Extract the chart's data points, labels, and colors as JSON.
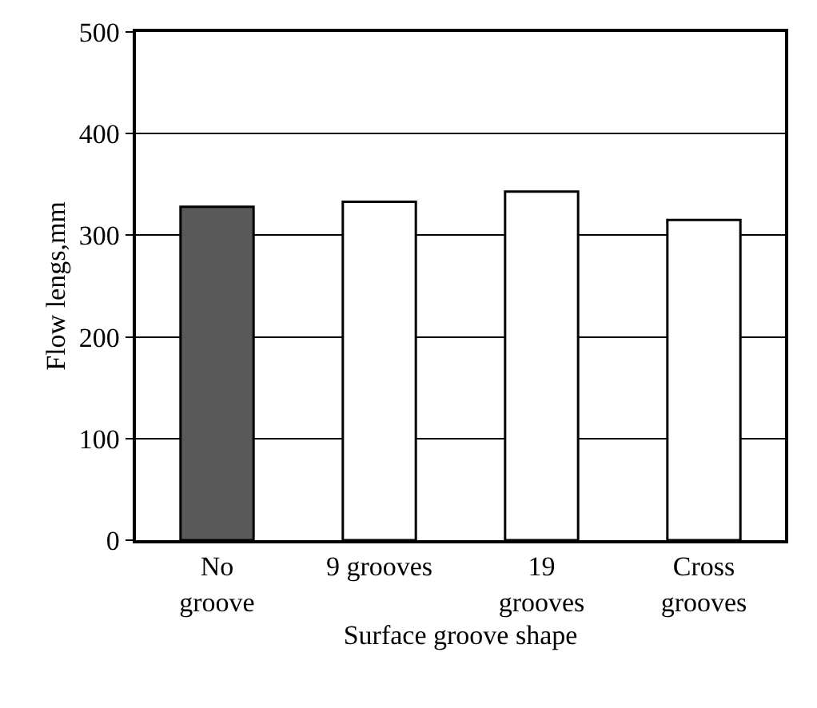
{
  "chart_data": {
    "type": "bar",
    "xlabel": "Surface groove shape",
    "ylabel": "Flow lengs,mm",
    "categories": [
      "No groove",
      "9 grooves",
      "19 grooves",
      "Cross grooves"
    ],
    "values": [
      328,
      333,
      343,
      315
    ],
    "colors": [
      "#595959",
      "#ffffff",
      "#ffffff",
      "#ffffff"
    ],
    "ylim": [
      0,
      500
    ],
    "yticks": [
      0,
      100,
      200,
      300,
      400,
      500
    ],
    "grid": "y"
  }
}
